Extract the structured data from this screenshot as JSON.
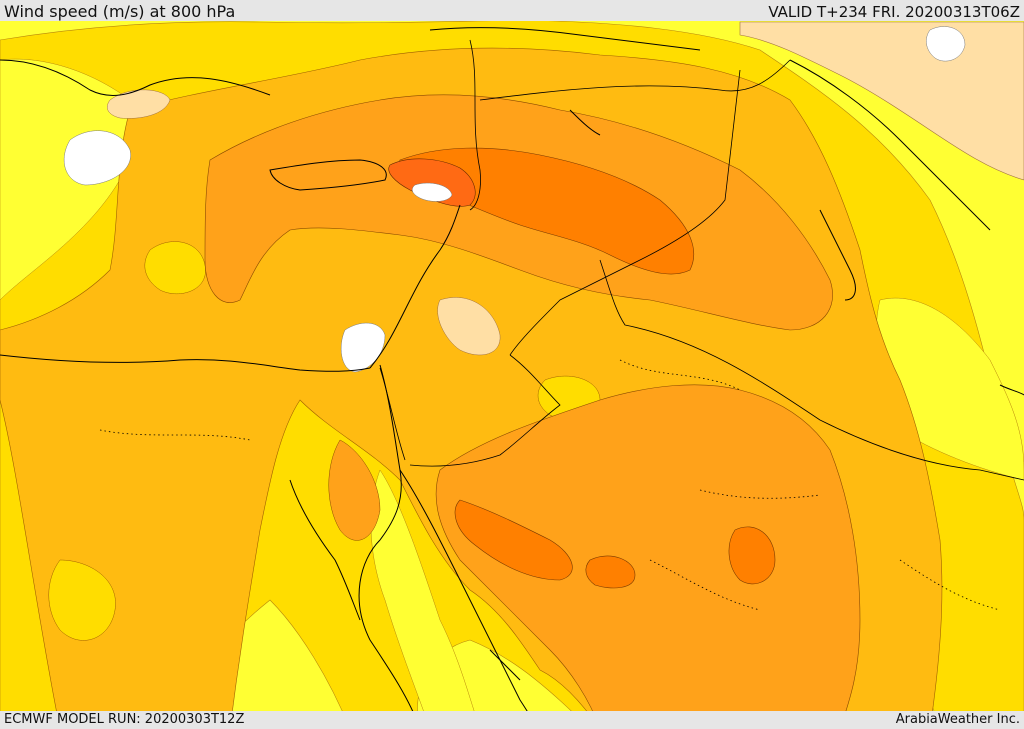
{
  "header": {
    "title": "Wind speed (m/s) at 800 hPa",
    "valid_time": "VALID T+234 FRI. 20200313T06Z"
  },
  "footer": {
    "model_run": "ECMWF MODEL RUN: 20200303T12Z",
    "credit": "ArabiaWeather Inc."
  },
  "colors": {
    "calm_white": "#ffffff",
    "very_light_peach": "#ffdfa5",
    "yellow": "#ffff33",
    "gold": "#ffdd00",
    "light_orange": "#ffbb11",
    "orange": "#ffa21a",
    "dark_orange": "#ff8000",
    "red_orange": "#ff6a14",
    "coastline": "#000000"
  }
}
